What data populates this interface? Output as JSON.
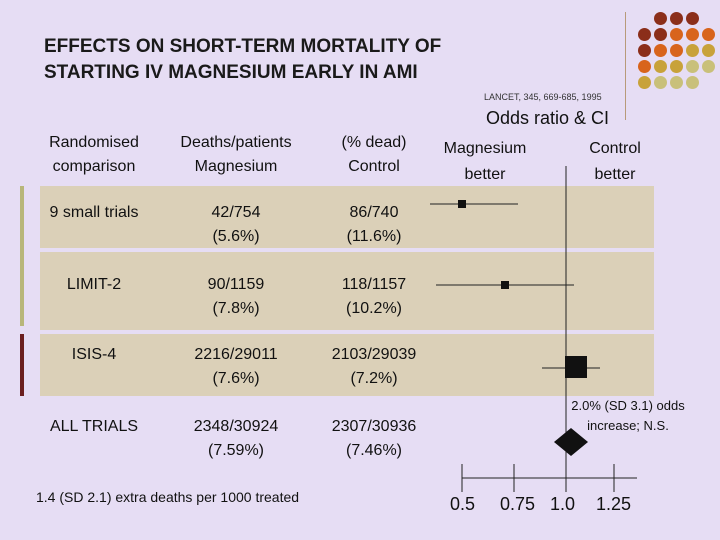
{
  "title": {
    "line1": "EFFECTS ON SHORT-TERM MORTALITY OF",
    "line2": "STARTING IV MAGNESIUM EARLY IN AMI"
  },
  "citation": "LANCET, 345, 669-685, 1995",
  "headers": {
    "comparison": [
      "Randomised",
      "comparison"
    ],
    "deaths_magnesium": [
      "Deaths/patients",
      "Magnesium"
    ],
    "control": [
      "(% dead)",
      "Control"
    ],
    "odds_ratio": "Odds ratio & CI",
    "magnesium_better": [
      "Magnesium",
      "better"
    ],
    "control_better": [
      "Control",
      "better"
    ]
  },
  "rows": [
    {
      "label": "9 small trials",
      "magnesium": [
        "42/754",
        "(5.6%)"
      ],
      "control": [
        "86/740",
        "(11.6%)"
      ],
      "bar_color": "#b8b67a"
    },
    {
      "label": "LIMIT-2",
      "magnesium": [
        "90/1159",
        "(7.8%)"
      ],
      "control": [
        "118/1157",
        "(10.2%)"
      ],
      "bar_color": "#b8b67a"
    },
    {
      "label": "ISIS-4",
      "magnesium": [
        "2216/29011",
        "(7.6%)"
      ],
      "control": [
        "2103/29039",
        "(7.2%)"
      ],
      "bar_color": "#6b1f1f"
    },
    {
      "label": "ALL TRIALS",
      "magnesium": [
        "2348/30924",
        "(7.59%)"
      ],
      "control": [
        "2307/30936",
        "(7.46%)"
      ],
      "bar_color": null
    }
  ],
  "all_trials_note": [
    "2.0% (SD 3.1) odds",
    "increase; N.S."
  ],
  "footnote": "1.4 (SD 2.1) extra deaths per 1000 treated",
  "axis_ticks": [
    "0.5",
    "0.75",
    "1.0",
    "1.25"
  ],
  "colors": {
    "background": "#e6ddf4",
    "row_band": "#dbd0b8",
    "dot_dark_red": "#8b2e1a",
    "dot_orange": "#d8641c",
    "dot_gold": "#c8a23a",
    "dot_olive": "#c9c07a"
  }
}
